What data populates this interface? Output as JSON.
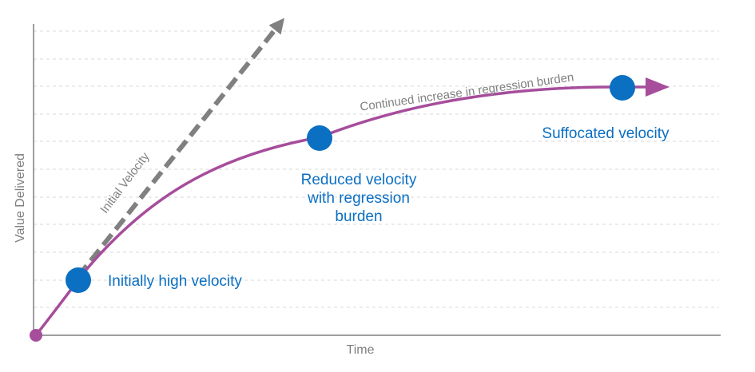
{
  "axes": {
    "x_label": "Time",
    "y_label": "Value Delivered"
  },
  "annotations": {
    "initial_velocity": "Initial Velocity",
    "regression_burden": "Continued increase in regression burden",
    "initially_high": "Initially high velocity",
    "reduced_line1": "Reduced velocity",
    "reduced_line2": "with regression",
    "reduced_line3": "burden",
    "suffocated": "Suffocated velocity"
  },
  "colors": {
    "curve": "#a64d9c",
    "milestone": "#0b6fc2",
    "dashed_arrow": "#808080",
    "axis": "#7f7f7f",
    "grid": "#d9d9d9"
  }
}
